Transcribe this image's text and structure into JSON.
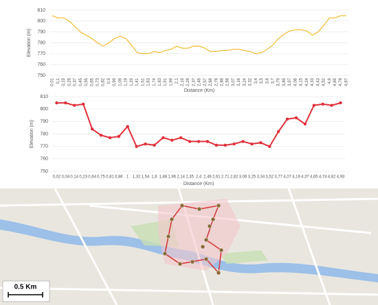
{
  "chart_data": [
    {
      "type": "line",
      "x_label": "Distance (Km)",
      "y_label": "Elevation (m)",
      "categories": [
        "0,01",
        "0,1",
        "0,19",
        "0,28",
        "0,37",
        "0,45",
        "0,55",
        "0,65",
        "0,73",
        "0,82",
        "0,9",
        "0,99",
        "1,09",
        "1,19",
        "1,29",
        "1,41",
        "1,51",
        "1,63",
        "1,74",
        "1,83",
        "1,91",
        "1,99",
        "2,1",
        "2,19",
        "2,28",
        "2,37",
        "2,46",
        "2,57",
        "2,68",
        "2,78",
        "2,88",
        "2,98",
        "3,07",
        "3,16",
        "3,24",
        "3,32",
        "3,4",
        "3,5",
        "3,6",
        "3,7",
        "3,79",
        "3,89",
        "3,97",
        "4,06",
        "4,15",
        "4,24",
        "4,33",
        "4,43",
        "4,52",
        "4,6",
        "4,69",
        "4,78",
        "4,87"
      ],
      "series": [
        {
          "name": "Elevation",
          "color": "#f2bf3c",
          "values": [
            805,
            803,
            803,
            800,
            795,
            790,
            787,
            784,
            780,
            777,
            780,
            784,
            786,
            784,
            778,
            771,
            770,
            770,
            772,
            771,
            773,
            774,
            777,
            775,
            775,
            777,
            777,
            775,
            772,
            772,
            773,
            773,
            774,
            774,
            773,
            772,
            770,
            771,
            774,
            778,
            784,
            788,
            791,
            792,
            792,
            791,
            787,
            790,
            796,
            803,
            803,
            805,
            805
          ]
        }
      ],
      "ylim": [
        750,
        810
      ],
      "yticks": [
        750,
        760,
        770,
        780,
        790,
        800,
        810
      ],
      "grid": true,
      "markers": false
    },
    {
      "type": "line",
      "x_label": "Distance (Km)",
      "y_label": "Elevation (m)",
      "categories": [
        "0,02",
        "0,04",
        "0,14",
        "0,23",
        "0,64",
        "0,75",
        "0,81",
        "0,86",
        "1",
        "1,32",
        "1,54",
        "1,6",
        "1,88",
        "1,96",
        "2,14",
        "2,35",
        "2,4",
        "2,49",
        "2,61",
        "2,71",
        "2,82",
        "3,06",
        "3,25",
        "3,34",
        "3,52",
        "3,77",
        "4,07",
        "4,19",
        "4,37",
        "4,65",
        "4,74",
        "4,82",
        "4,93"
      ],
      "series": [
        {
          "name": "Elevation",
          "color": "#e0303a",
          "values": [
            805,
            805,
            803,
            804,
            784,
            779,
            777,
            778,
            786,
            770,
            772,
            771,
            777,
            775,
            777,
            774,
            774,
            774,
            771,
            771,
            772,
            774,
            772,
            773,
            770,
            782,
            792,
            793,
            788,
            803,
            804,
            803,
            805
          ]
        }
      ],
      "ylim": [
        750,
        810
      ],
      "yticks": [
        750,
        760,
        770,
        780,
        790,
        800,
        810
      ],
      "grid": true,
      "markers": true
    }
  ],
  "map": {
    "scale_label": "0.5 Km"
  }
}
